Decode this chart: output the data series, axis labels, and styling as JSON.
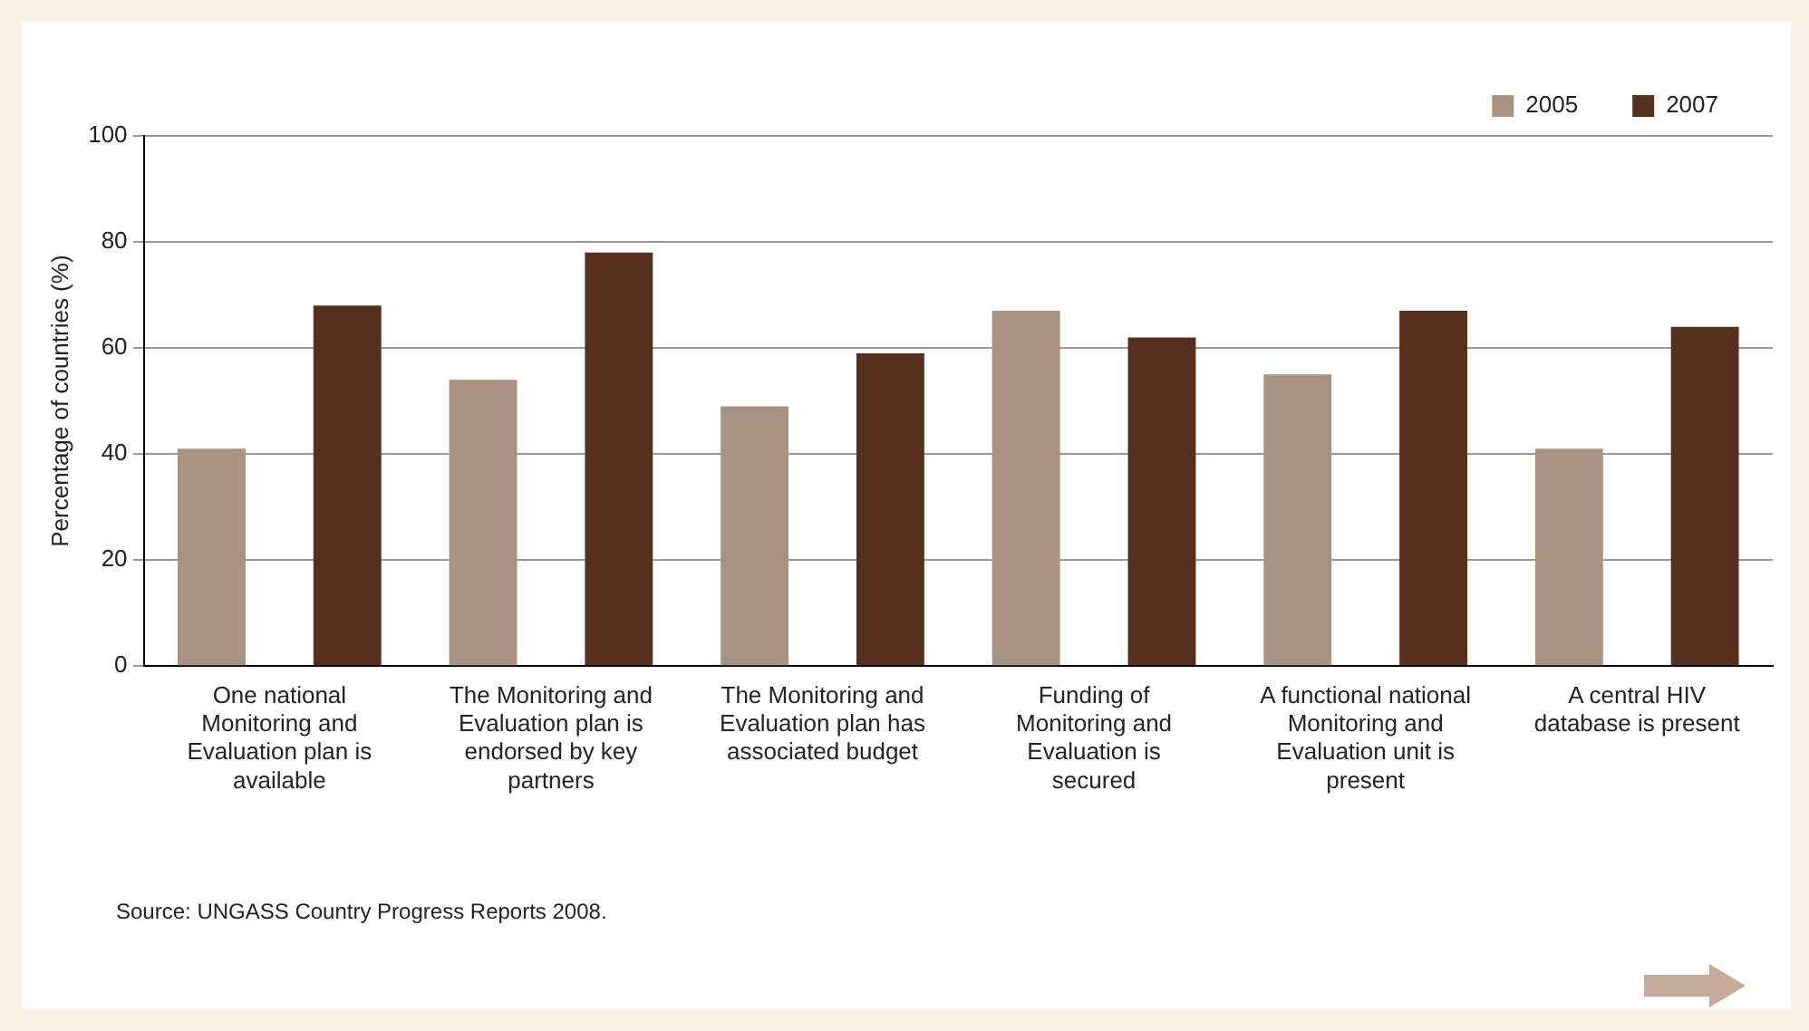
{
  "chart_data": {
    "type": "bar",
    "categories": [
      "One national Monitoring and Evaluation plan is available",
      "The Monitoring and Evaluation plan is endorsed by key partners",
      "The Monitoring and Evaluation plan has associated budget",
      "Funding of Monitoring and Evaluation is secured",
      "A functional national Monitoring and Evaluation unit is present",
      "A central HIV database is present"
    ],
    "series": [
      {
        "name": "2005",
        "color": "#a89282",
        "values": [
          41,
          54,
          49,
          67,
          55,
          41
        ]
      },
      {
        "name": "2007",
        "color": "#56301c",
        "values": [
          68,
          78,
          59,
          62,
          67,
          64
        ]
      }
    ],
    "ylabel": "Percentage of countries (%)",
    "ylim": [
      0,
      100
    ],
    "yticks": [
      0,
      20,
      40,
      60,
      80,
      100
    ],
    "grid": "y",
    "legend": "top right",
    "annotations": [
      "Source: UNGASS Country Progress Reports 2008."
    ]
  }
}
